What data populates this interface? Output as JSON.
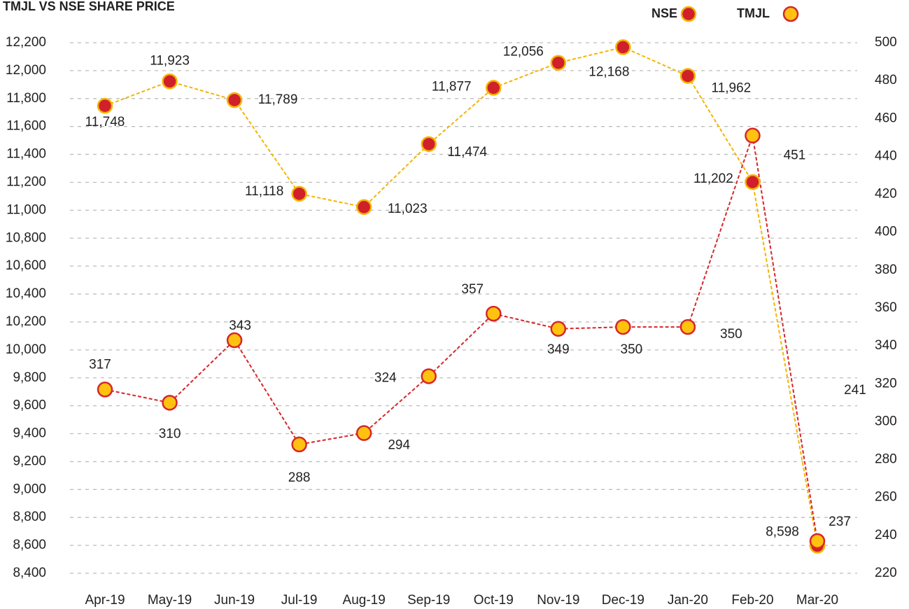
{
  "chart_data": {
    "type": "line",
    "title": "TMJL VS NSE SHARE PRICE",
    "categories": [
      "Apr-19",
      "May-19",
      "Jun-19",
      "Jul-19",
      "Aug-19",
      "Sep-19",
      "Oct-19",
      "Nov-19",
      "Dec-19",
      "Jan-20",
      "Feb-20",
      "Mar-20"
    ],
    "series": [
      {
        "name": "NSE",
        "color": "#d0202a",
        "line_color": "#f5b400",
        "axis": "y",
        "values": [
          11748,
          11923,
          11789,
          11118,
          11023,
          11474,
          11877,
          12056,
          12168,
          11962,
          11202,
          8598
        ],
        "value_labels": [
          "11,748",
          "11,923",
          "11,789",
          "11,118",
          "11,023",
          "11,474",
          "11,877",
          "12,056",
          "12,168",
          "11,962",
          "11,202",
          "8,598"
        ]
      },
      {
        "name": "TMJL",
        "color": "#ffc20e",
        "line_color": "#d6262b",
        "axis": "y2",
        "values": [
          317,
          310,
          343,
          288,
          294,
          324,
          357,
          349,
          350,
          350,
          451,
          237
        ]
      }
    ],
    "annotation": "241",
    "ylim": [
      8400,
      12200
    ],
    "yticks": [
      {
        "value": 8400,
        "label": "8,400"
      },
      {
        "value": 8600,
        "label": "8,600"
      },
      {
        "value": 8800,
        "label": "8,800"
      },
      {
        "value": 9000,
        "label": "9,000"
      },
      {
        "value": 9200,
        "label": "9,200"
      },
      {
        "value": 9400,
        "label": "9,400"
      },
      {
        "value": 9600,
        "label": "9,600"
      },
      {
        "value": 9800,
        "label": "9,800"
      },
      {
        "value": 10000,
        "label": "10,000"
      },
      {
        "value": 10200,
        "label": "10,200"
      },
      {
        "value": 10400,
        "label": "10,400"
      },
      {
        "value": 10600,
        "label": "10,600"
      },
      {
        "value": 10800,
        "label": "10,800"
      },
      {
        "value": 11000,
        "label": "11,000"
      },
      {
        "value": 11200,
        "label": "11,200"
      },
      {
        "value": 11400,
        "label": "11,400"
      },
      {
        "value": 11600,
        "label": "11,600"
      },
      {
        "value": 11800,
        "label": "11,800"
      },
      {
        "value": 12000,
        "label": "12,000"
      },
      {
        "value": 12200,
        "label": "12,200"
      }
    ],
    "y2lim": [
      220,
      500
    ],
    "y2ticks": [
      220,
      240,
      260,
      280,
      300,
      320,
      340,
      360,
      380,
      400,
      420,
      440,
      460,
      480,
      500
    ],
    "grid": true,
    "legend": "top-right"
  }
}
